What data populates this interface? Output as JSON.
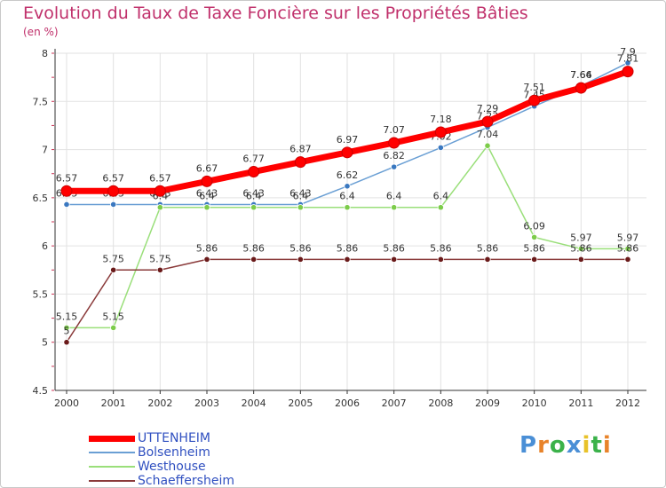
{
  "title": "Evolution du Taux de Taxe Foncière sur les Propriétés Bâties",
  "subtitle": "(en %)",
  "logo": {
    "text": "Proxiti",
    "colors": [
      "#4a8fd6",
      "#e8832a",
      "#3bb24a",
      "#4a8fd6",
      "#e8c22a",
      "#3bb24a",
      "#e8832a"
    ]
  },
  "chart_data": {
    "type": "line",
    "title": "Evolution du Taux de Taxe Foncière sur les Propriétés Bâties",
    "ylabel": "(en %)",
    "xlabel": "",
    "ylim": [
      4.5,
      8
    ],
    "yticks": [
      "4.5",
      "5",
      "5.5",
      "6",
      "6.5",
      "7",
      "7.5",
      "8"
    ],
    "categories": [
      "2000",
      "2001",
      "2002",
      "2003",
      "2004",
      "2005",
      "2006",
      "2007",
      "2008",
      "2009",
      "2010",
      "2011",
      "2012"
    ],
    "series": [
      {
        "name": "UTTENHEIM",
        "color": "#ff0000",
        "point_color": "#ff0000",
        "values": [
          6.57,
          6.57,
          6.57,
          6.67,
          6.77,
          6.87,
          6.97,
          7.07,
          7.18,
          7.29,
          7.51,
          7.64,
          7.81
        ],
        "labels": [
          "6.57",
          "6.57",
          "6.57",
          "6.67",
          "6.77",
          "6.87",
          "6.97",
          "7.07",
          "7.18",
          "7.29",
          "7.51",
          "7.64",
          "7.81"
        ]
      },
      {
        "name": "Bolsenheim",
        "color": "#6a9fd4",
        "point_color": "#3a78c0",
        "values": [
          6.43,
          6.43,
          6.43,
          6.43,
          6.43,
          6.43,
          6.62,
          6.82,
          7.02,
          7.23,
          7.45,
          7.66,
          7.9
        ],
        "labels": [
          "6.43",
          "6.43",
          "6.43",
          "6.43",
          "6.43",
          "6.43",
          "6.62",
          "6.82",
          "7.02",
          "7.23",
          "7.45",
          "7.66",
          "7.9"
        ]
      },
      {
        "name": "Westhouse",
        "color": "#9adf7a",
        "point_color": "#7ccc4a",
        "values": [
          5.15,
          5.15,
          6.4,
          6.4,
          6.4,
          6.4,
          6.4,
          6.4,
          6.4,
          7.04,
          6.09,
          5.97,
          5.97
        ],
        "labels": [
          "5.15",
          "5.15",
          "6.4",
          "6.4",
          "6.4",
          "6.4",
          "6.4",
          "6.4",
          "6.4",
          "7.04",
          "6.09",
          "5.97",
          "5.97"
        ]
      },
      {
        "name": "Schaeffersheim",
        "color": "#8a3a3a",
        "point_color": "#6a1a1a",
        "values": [
          5.0,
          5.75,
          5.75,
          5.86,
          5.86,
          5.86,
          5.86,
          5.86,
          5.86,
          5.86,
          5.86,
          5.86,
          5.86
        ],
        "labels": [
          "5",
          "5.75",
          "5.75",
          "5.86",
          "5.86",
          "5.86",
          "5.86",
          "5.86",
          "5.86",
          "5.86",
          "5.86",
          "5.86",
          "5.86"
        ]
      }
    ],
    "legend_position": "bottom-left"
  }
}
